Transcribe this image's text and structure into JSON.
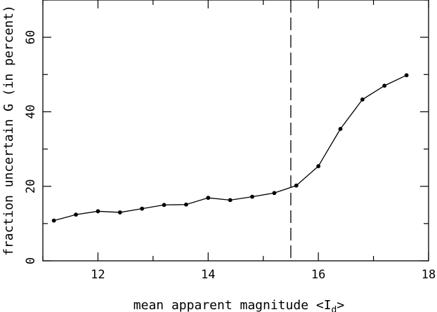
{
  "chart_data": {
    "type": "line",
    "xlabel": "mean apparent magnitude <I",
    "xlabel_sub": "d",
    "xlabel_suffix": ">",
    "ylabel": "fraction uncertain G (in percent)",
    "xlim": [
      11,
      18
    ],
    "ylim": [
      0,
      70
    ],
    "x_ticks": [
      12,
      14,
      16,
      18
    ],
    "y_ticks": [
      0,
      20,
      40,
      60
    ],
    "grid": false,
    "reference_line": {
      "x": 15.5,
      "style": "dashed"
    },
    "x": [
      11.2,
      11.6,
      12.0,
      12.4,
      12.8,
      13.2,
      13.6,
      14.0,
      14.4,
      14.8,
      15.2,
      15.6,
      16.0,
      16.4,
      16.8,
      17.2,
      17.6
    ],
    "y": [
      10.8,
      12.4,
      13.3,
      13.0,
      14.0,
      15.0,
      15.1,
      16.9,
      16.3,
      17.2,
      18.2,
      20.2,
      25.4,
      35.4,
      43.3,
      47.0,
      49.8
    ]
  }
}
